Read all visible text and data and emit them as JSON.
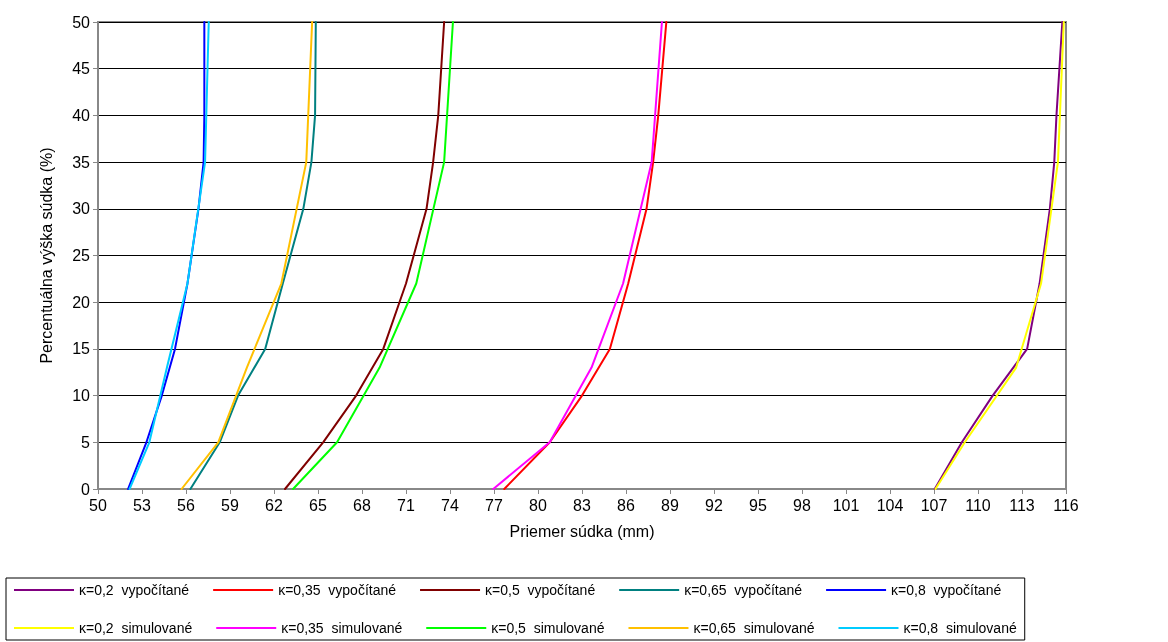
{
  "chart_data": {
    "type": "line",
    "xlabel": "Priemer súdka (mm)",
    "ylabel": "Percentuálna výška súdka (%)",
    "xlim": [
      50,
      116
    ],
    "xticks": [
      50,
      53,
      56,
      59,
      62,
      65,
      68,
      71,
      74,
      77,
      80,
      83,
      86,
      89,
      92,
      95,
      98,
      101,
      104,
      107,
      110,
      113,
      116
    ],
    "ylim": [
      0,
      50
    ],
    "yticks": [
      0,
      5,
      10,
      15,
      20,
      25,
      30,
      35,
      40,
      45,
      50
    ],
    "grid": "y",
    "legend": "bottom",
    "marker": "none",
    "line_style": "solid",
    "series": [
      {
        "name": "κ=0,2  vypočítané",
        "color": "#800080",
        "x": [
          107.05,
          108.9,
          111.0,
          113.35,
          114.2,
          114.9,
          115.2,
          115.35,
          115.75
        ],
        "values": [
          0,
          5,
          10,
          15,
          22,
          30,
          35,
          40,
          50
        ]
      },
      {
        "name": "κ=0,35  vypočítané",
        "color": "#ff0000",
        "x": [
          77.7,
          80.8,
          83.0,
          84.9,
          86.15,
          87.4,
          87.85,
          88.2,
          88.75
        ],
        "values": [
          0,
          5,
          10,
          15,
          22,
          30,
          35,
          40,
          50
        ]
      },
      {
        "name": "κ=0,5  vypočítané",
        "color": "#800000",
        "x": [
          62.75,
          65.35,
          67.6,
          69.45,
          71.0,
          72.4,
          72.85,
          73.2,
          73.6
        ],
        "values": [
          0,
          5,
          10,
          15,
          22,
          30,
          35,
          40,
          50
        ]
      },
      {
        "name": "κ=0,65  vypočítané",
        "color": "#008080",
        "x": [
          56.3,
          58.3,
          59.55,
          61.4,
          62.6,
          64.0,
          64.55,
          64.8,
          64.85
        ],
        "values": [
          0,
          5,
          10,
          15,
          22,
          30,
          35,
          40,
          50
        ]
      },
      {
        "name": "κ=0,8  vypočítané",
        "color": "#0000ff",
        "x": [
          52.05,
          53.3,
          54.35,
          55.25,
          56.1,
          56.85,
          57.2,
          57.25,
          57.25
        ],
        "values": [
          0,
          5,
          10,
          15,
          22,
          30,
          35,
          40,
          50
        ]
      },
      {
        "name": "κ=0,2  simulované",
        "color": "#ffff00",
        "x": [
          107.1,
          109.1,
          112.6,
          114.3,
          115.45,
          115.85
        ],
        "values": [
          0,
          5,
          13,
          22,
          35,
          50
        ]
      },
      {
        "name": "κ=0,35  simulované",
        "color": "#ff00ff",
        "x": [
          76.95,
          80.8,
          83.65,
          85.8,
          87.75,
          88.45
        ],
        "values": [
          0,
          5,
          13,
          22,
          35,
          50
        ]
      },
      {
        "name": "κ=0,5  simulované",
        "color": "#00ff00",
        "x": [
          63.3,
          66.3,
          69.2,
          71.7,
          73.6,
          74.2
        ],
        "values": [
          0,
          5,
          13,
          22,
          35,
          50
        ]
      },
      {
        "name": "κ=0,65  simulované",
        "color": "#ffc000",
        "x": [
          55.7,
          58.2,
          60.15,
          62.5,
          64.2,
          64.6
        ],
        "values": [
          0,
          5,
          13,
          22,
          35,
          50
        ]
      },
      {
        "name": "κ=0,8  simulované",
        "color": "#00ccff",
        "x": [
          52.15,
          53.5,
          54.7,
          56.1,
          57.3,
          57.55
        ],
        "values": [
          0,
          5,
          13,
          22,
          35,
          50
        ]
      }
    ]
  }
}
